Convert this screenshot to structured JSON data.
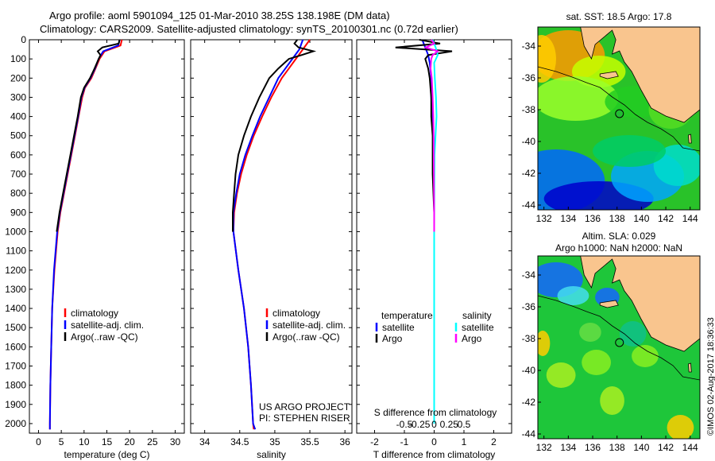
{
  "header": {
    "line1": "Argo profile: aoml 5901094_125 01-Mar-2010 38.25S 138.198E (DM data)",
    "line2": "Climatology: CARS2009. Satellite-adjusted climatology: synTS_20100301.nc (0.72d earlier)"
  },
  "copyright": "©IMOS 02-Aug-2017 18:36:33",
  "colors": {
    "climatology": "#ff0000",
    "satellite": "#0000ff",
    "argo": "#000000",
    "satellite_salinity": "#00ffff",
    "argo_salinity": "#ff00ff",
    "land": "#f9c58e"
  },
  "chart_data": [
    {
      "type": "line",
      "name": "temperature-panel",
      "xlabel": "temperature (deg C)",
      "ylabel": "",
      "xlim": [
        -2,
        32
      ],
      "ylim": [
        2050,
        0
      ],
      "xticks": [
        0,
        5,
        10,
        15,
        20,
        25,
        30
      ],
      "yticks": [
        0,
        100,
        200,
        300,
        400,
        500,
        600,
        700,
        800,
        900,
        1000,
        1100,
        1200,
        1300,
        1400,
        1500,
        1600,
        1700,
        1800,
        1900,
        2000
      ],
      "legend": {
        "placement": "bottom-center",
        "entries": [
          "climatology",
          "satellite-adj. clim.",
          "Argo(..raw -QC)"
        ]
      },
      "series": [
        {
          "name": "climatology",
          "color": "#ff0000",
          "depth": [
            0,
            30,
            60,
            100,
            150,
            200,
            250,
            300,
            400,
            500,
            600,
            700,
            800,
            900,
            1000,
            1200,
            1400,
            1600,
            1800,
            2000,
            2030
          ],
          "values": [
            18.3,
            18.0,
            14.5,
            13.4,
            12.5,
            11.6,
            10.2,
            9.6,
            8.8,
            8.0,
            7.2,
            6.4,
            5.6,
            4.8,
            4.2,
            3.5,
            3.0,
            2.8,
            2.6,
            2.5,
            2.5
          ]
        },
        {
          "name": "satellite-adj. clim.",
          "color": "#0000ff",
          "depth": [
            0,
            30,
            60,
            100,
            150,
            200,
            250,
            300,
            400,
            500,
            600,
            700,
            800,
            900,
            1000,
            1200,
            1400,
            1600,
            1800,
            2000,
            2030
          ],
          "values": [
            17.8,
            17.5,
            14.2,
            13.2,
            12.4,
            11.4,
            10.1,
            9.4,
            8.7,
            7.9,
            7.1,
            6.3,
            5.5,
            4.7,
            4.1,
            3.4,
            3.0,
            2.8,
            2.6,
            2.5,
            2.5
          ]
        },
        {
          "name": "Argo(..raw -QC)",
          "color": "#000000",
          "depth": [
            0,
            20,
            40,
            60,
            80,
            100,
            150,
            200,
            250,
            300,
            400,
            500,
            600,
            700,
            800,
            900,
            1000
          ],
          "values": [
            17.8,
            17.6,
            14.0,
            13.0,
            13.6,
            13.2,
            12.3,
            11.3,
            10.0,
            9.3,
            8.6,
            7.8,
            7.0,
            6.2,
            5.4,
            4.6,
            4.0
          ]
        }
      ]
    },
    {
      "type": "line",
      "name": "salinity-panel",
      "xlabel": "salinity",
      "ylabel": "",
      "xlim": [
        33.8,
        36.1
      ],
      "ylim": [
        2050,
        0
      ],
      "xticks": [
        34,
        34.5,
        35,
        35.5,
        36
      ],
      "xticklabels": [
        "34",
        "34.5",
        "35",
        "35.5",
        "36"
      ],
      "legend": {
        "placement": "bottom-center",
        "entries": [
          "climatology",
          "satellite-adj. clim.",
          "Argo(..raw -QC)"
        ]
      },
      "annotations": [
        "US ARGO PROJECT",
        "PI: STEPHEN RISER"
      ],
      "series": [
        {
          "name": "climatology",
          "color": "#ff0000",
          "depth": [
            0,
            50,
            100,
            150,
            200,
            300,
            400,
            500,
            600,
            700,
            800,
            900,
            1000,
            1200,
            1400,
            1600,
            1800,
            2000,
            2030
          ],
          "values": [
            35.5,
            35.4,
            35.3,
            35.2,
            35.1,
            34.95,
            34.82,
            34.7,
            34.6,
            34.52,
            34.46,
            34.42,
            34.41,
            34.48,
            34.56,
            34.62,
            34.66,
            34.69,
            34.7
          ]
        },
        {
          "name": "satellite-adj. clim.",
          "color": "#0000ff",
          "depth": [
            0,
            50,
            100,
            150,
            200,
            300,
            400,
            500,
            600,
            700,
            800,
            900,
            1000,
            1200,
            1400,
            1600,
            1800,
            2000,
            2030
          ],
          "values": [
            35.4,
            35.35,
            35.25,
            35.15,
            35.05,
            34.92,
            34.79,
            34.68,
            34.58,
            34.5,
            34.45,
            34.41,
            34.41,
            34.48,
            34.56,
            34.62,
            34.66,
            34.69,
            34.72
          ]
        },
        {
          "name": "Argo(..raw -QC)",
          "color": "#000000",
          "depth": [
            0,
            20,
            40,
            60,
            80,
            100,
            150,
            200,
            300,
            400,
            500,
            600,
            700,
            800,
            900,
            1000
          ],
          "values": [
            35.32,
            35.28,
            35.34,
            35.55,
            35.38,
            35.2,
            35.05,
            34.92,
            34.78,
            34.66,
            34.56,
            34.48,
            34.44,
            34.42,
            34.4,
            34.4
          ]
        }
      ]
    },
    {
      "type": "line",
      "name": "difference-panel",
      "xlabel": "T difference from climatology",
      "toplabel": "S difference from climatology",
      "xlim": [
        -2.6,
        2.6
      ],
      "ylim": [
        2050,
        0
      ],
      "xticks": [
        -2,
        -1,
        0,
        1,
        2
      ],
      "top_ticklabels": [
        "-0.5",
        "-0.25",
        "0",
        "0.25",
        "0.5"
      ],
      "legend": {
        "placement": "bottom-center",
        "headers": [
          "temperature",
          "salinity"
        ],
        "entries": [
          "satellite",
          "Argo",
          "satellite",
          "Argo"
        ]
      },
      "series": [
        {
          "name": "T satellite",
          "color": "#0000ff",
          "depth": [
            0,
            40,
            80,
            120,
            200,
            300,
            400,
            600,
            1000,
            1500,
            2000
          ],
          "values": [
            -0.4,
            -0.3,
            -0.2,
            -0.15,
            -0.1,
            -0.1,
            -0.05,
            0,
            0,
            0,
            0
          ]
        },
        {
          "name": "T Argo",
          "color": "#000000",
          "depth": [
            0,
            20,
            40,
            60,
            80,
            100,
            150,
            200,
            300,
            400,
            500,
            700,
            900
          ],
          "values": [
            -0.5,
            0.2,
            -1.3,
            0.6,
            -0.2,
            -0.3,
            -0.2,
            -0.15,
            -0.1,
            -0.1,
            -0.05,
            -0.05,
            0
          ]
        },
        {
          "name": "S satellite",
          "color": "#00ffff",
          "depth": [
            0,
            40,
            80,
            120,
            200,
            300,
            400,
            600,
            1000,
            1500,
            2000
          ],
          "values": [
            -0.05,
            0.05,
            0.12,
            0.0,
            0.02,
            0.06,
            0.08,
            0.01,
            0.0,
            0.0,
            0.0
          ]
        },
        {
          "name": "S Argo",
          "color": "#ff00ff",
          "depth": [
            0,
            20,
            40,
            60,
            80,
            100,
            150,
            200,
            300,
            400,
            500,
            700,
            900,
            1000
          ],
          "values": [
            -0.1,
            0.0,
            -0.28,
            0.12,
            -0.05,
            -0.1,
            -0.12,
            -0.08,
            -0.05,
            -0.03,
            -0.02,
            -0.01,
            0.0,
            0.0
          ]
        }
      ]
    },
    {
      "type": "heatmap",
      "name": "sst-map",
      "title": "sat. SST: 18.5  Argo: 17.8",
      "xlim": [
        131.5,
        144.8
      ],
      "ylim": [
        -44.3,
        -32.8
      ],
      "xticks": [
        132,
        134,
        136,
        138,
        140,
        142,
        144
      ],
      "yticks": [
        -34,
        -36,
        -38,
        -40,
        -42,
        -44
      ],
      "argo_position": {
        "lon": 138.198,
        "lat": -38.25
      }
    },
    {
      "type": "heatmap",
      "name": "sla-map",
      "title_line1": "Altim. SLA: 0.029",
      "title_line2": "Argo h1000: NaN  h2000: NaN",
      "xlim": [
        131.5,
        144.8
      ],
      "ylim": [
        -44.3,
        -32.8
      ],
      "xticks": [
        132,
        134,
        136,
        138,
        140,
        142,
        144
      ],
      "yticks": [
        -34,
        -36,
        -38,
        -40,
        -42,
        -44
      ],
      "argo_position": {
        "lon": 138.198,
        "lat": -38.25
      }
    }
  ]
}
